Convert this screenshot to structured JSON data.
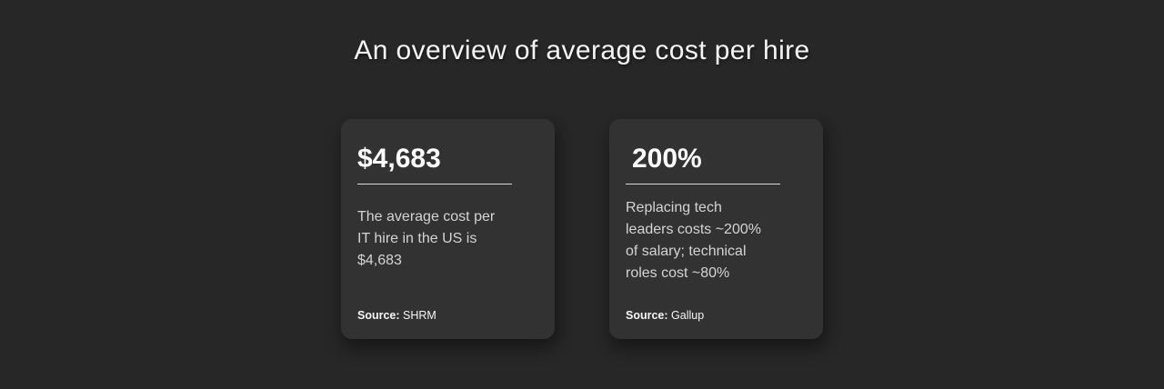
{
  "page": {
    "title": "An overview of average cost per hire"
  },
  "colors": {
    "background": "#272727",
    "card_background": "#323232",
    "title_text": "#f4f4f4",
    "stat_text": "#ffffff",
    "body_text": "#d4d4d4",
    "divider": "#d9d9d9"
  },
  "cards": [
    {
      "stat": "$4,683",
      "description_lines": [
        "The average cost per",
        "IT hire in the US is",
        "$4,683"
      ],
      "source_label": "Source:",
      "source_name": "SHRM"
    },
    {
      "stat": "200%",
      "description_lines": [
        "Replacing tech",
        "leaders costs ~200%",
        "of salary; technical",
        "roles cost ~80%"
      ],
      "source_label": "Source:",
      "source_name": "Gallup"
    }
  ]
}
